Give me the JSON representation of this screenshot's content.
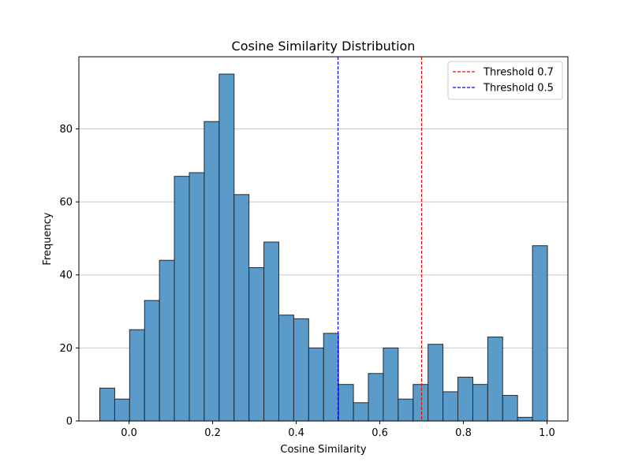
{
  "chart_data": {
    "type": "bar",
    "title": "Cosine Similarity Distribution",
    "xlabel": "Cosine Similarity",
    "ylabel": "Frequency",
    "xlim": [
      -0.12,
      1.05
    ],
    "ylim": [
      0,
      99.75
    ],
    "x_ticks": [
      0.0,
      0.2,
      0.4,
      0.6,
      0.8,
      1.0
    ],
    "x_tick_labels": [
      "0.0",
      "0.2",
      "0.4",
      "0.6",
      "0.8",
      "1.0"
    ],
    "y_ticks": [
      0,
      20,
      40,
      60,
      80
    ],
    "y_tick_labels": [
      "0",
      "20",
      "40",
      "60",
      "80"
    ],
    "grid": "horizontal",
    "bar_color": "#5b9bc9",
    "bar_edge_color": "#1f2a33",
    "bins": {
      "start": -0.07,
      "width": 0.0357,
      "counts": [
        9,
        6,
        25,
        33,
        44,
        67,
        68,
        82,
        95,
        62,
        42,
        49,
        29,
        28,
        20,
        24,
        10,
        5,
        13,
        20,
        6,
        10,
        21,
        8,
        12,
        10,
        23,
        7,
        1,
        48
      ]
    },
    "thresholds": [
      {
        "name": "Threshold 0.7",
        "value": 0.7,
        "color": "#ff0000"
      },
      {
        "name": "Threshold 0.5",
        "value": 0.5,
        "color": "#0000ff"
      }
    ],
    "legend_position": "top-right"
  }
}
